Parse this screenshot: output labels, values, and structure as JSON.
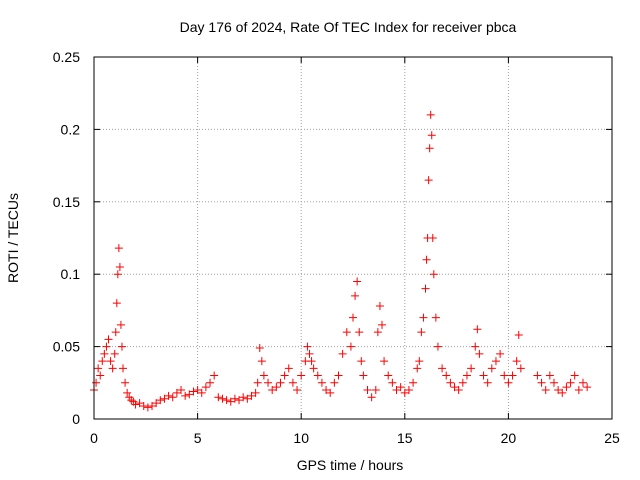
{
  "chart_data": {
    "type": "scatter",
    "title": "Day 176 of 2024, Rate Of TEC Index for receiver pbca",
    "xlabel": "GPS time / hours",
    "ylabel": "ROTI / TECUs",
    "xlim": [
      0,
      25
    ],
    "ylim": [
      0,
      0.25
    ],
    "x_ticks": [
      0,
      5,
      10,
      15,
      20,
      25
    ],
    "y_ticks": [
      0,
      0.05,
      0.1,
      0.15,
      0.2,
      0.25
    ],
    "x_tick_labels": [
      "0",
      "5",
      "10",
      "15",
      "20",
      "25"
    ],
    "y_tick_labels": [
      "0",
      "0.05",
      "0.1",
      "0.15",
      "0.2",
      "0.25"
    ],
    "grid": true,
    "marker": "+",
    "series": [
      {
        "name": "ROTI",
        "color": "#ff0000",
        "x": [
          0.0,
          0.1,
          0.2,
          0.3,
          0.4,
          0.5,
          0.6,
          0.7,
          0.8,
          0.9,
          1.0,
          1.05,
          1.1,
          1.15,
          1.2,
          1.25,
          1.3,
          1.35,
          1.4,
          1.5,
          1.6,
          1.7,
          1.8,
          1.9,
          2.0,
          2.2,
          2.4,
          2.6,
          2.8,
          3.0,
          3.2,
          3.4,
          3.6,
          3.8,
          4.0,
          4.2,
          4.4,
          4.6,
          4.8,
          5.0,
          5.2,
          5.4,
          5.6,
          5.8,
          6.0,
          6.2,
          6.4,
          6.6,
          6.8,
          7.0,
          7.2,
          7.4,
          7.6,
          7.8,
          7.9,
          8.0,
          8.1,
          8.2,
          8.4,
          8.6,
          8.8,
          9.0,
          9.2,
          9.4,
          9.6,
          9.8,
          10.0,
          10.2,
          10.3,
          10.4,
          10.5,
          10.6,
          10.8,
          11.0,
          11.2,
          11.4,
          11.6,
          11.8,
          12.0,
          12.2,
          12.4,
          12.5,
          12.6,
          12.7,
          12.8,
          12.9,
          13.0,
          13.2,
          13.4,
          13.6,
          13.7,
          13.8,
          13.9,
          14.0,
          14.2,
          14.4,
          14.6,
          14.8,
          15.0,
          15.2,
          15.4,
          15.6,
          15.7,
          15.8,
          15.9,
          16.0,
          16.05,
          16.1,
          16.15,
          16.2,
          16.25,
          16.3,
          16.35,
          16.4,
          16.5,
          16.6,
          16.8,
          17.0,
          17.2,
          17.4,
          17.6,
          17.8,
          18.0,
          18.2,
          18.4,
          18.5,
          18.6,
          18.8,
          19.0,
          19.2,
          19.4,
          19.6,
          19.8,
          20.0,
          20.2,
          20.4,
          20.5,
          20.6,
          21.4,
          21.6,
          21.8,
          22.0,
          22.2,
          22.4,
          22.6,
          22.8,
          23.0,
          23.2,
          23.4,
          23.6,
          23.8
        ],
        "y": [
          0.02,
          0.025,
          0.035,
          0.03,
          0.04,
          0.045,
          0.05,
          0.055,
          0.04,
          0.035,
          0.045,
          0.06,
          0.08,
          0.1,
          0.118,
          0.105,
          0.065,
          0.05,
          0.035,
          0.025,
          0.018,
          0.015,
          0.013,
          0.012,
          0.01,
          0.011,
          0.009,
          0.008,
          0.009,
          0.011,
          0.013,
          0.014,
          0.016,
          0.015,
          0.018,
          0.02,
          0.016,
          0.017,
          0.019,
          0.02,
          0.018,
          0.022,
          0.025,
          0.03,
          0.015,
          0.014,
          0.013,
          0.012,
          0.014,
          0.013,
          0.015,
          0.014,
          0.016,
          0.018,
          0.025,
          0.049,
          0.04,
          0.03,
          0.025,
          0.02,
          0.022,
          0.025,
          0.03,
          0.035,
          0.025,
          0.02,
          0.03,
          0.04,
          0.05,
          0.045,
          0.04,
          0.035,
          0.03,
          0.025,
          0.02,
          0.018,
          0.025,
          0.03,
          0.045,
          0.06,
          0.05,
          0.07,
          0.085,
          0.095,
          0.06,
          0.04,
          0.03,
          0.02,
          0.015,
          0.02,
          0.06,
          0.078,
          0.065,
          0.04,
          0.03,
          0.025,
          0.02,
          0.022,
          0.018,
          0.02,
          0.025,
          0.035,
          0.04,
          0.06,
          0.07,
          0.09,
          0.11,
          0.125,
          0.165,
          0.187,
          0.21,
          0.196,
          0.125,
          0.1,
          0.07,
          0.05,
          0.035,
          0.03,
          0.025,
          0.022,
          0.02,
          0.025,
          0.03,
          0.035,
          0.05,
          0.062,
          0.045,
          0.03,
          0.025,
          0.035,
          0.04,
          0.045,
          0.03,
          0.025,
          0.03,
          0.04,
          0.058,
          0.035,
          0.03,
          0.025,
          0.02,
          0.03,
          0.025,
          0.02,
          0.018,
          0.022,
          0.025,
          0.03,
          0.02,
          0.025,
          0.022
        ]
      }
    ]
  }
}
